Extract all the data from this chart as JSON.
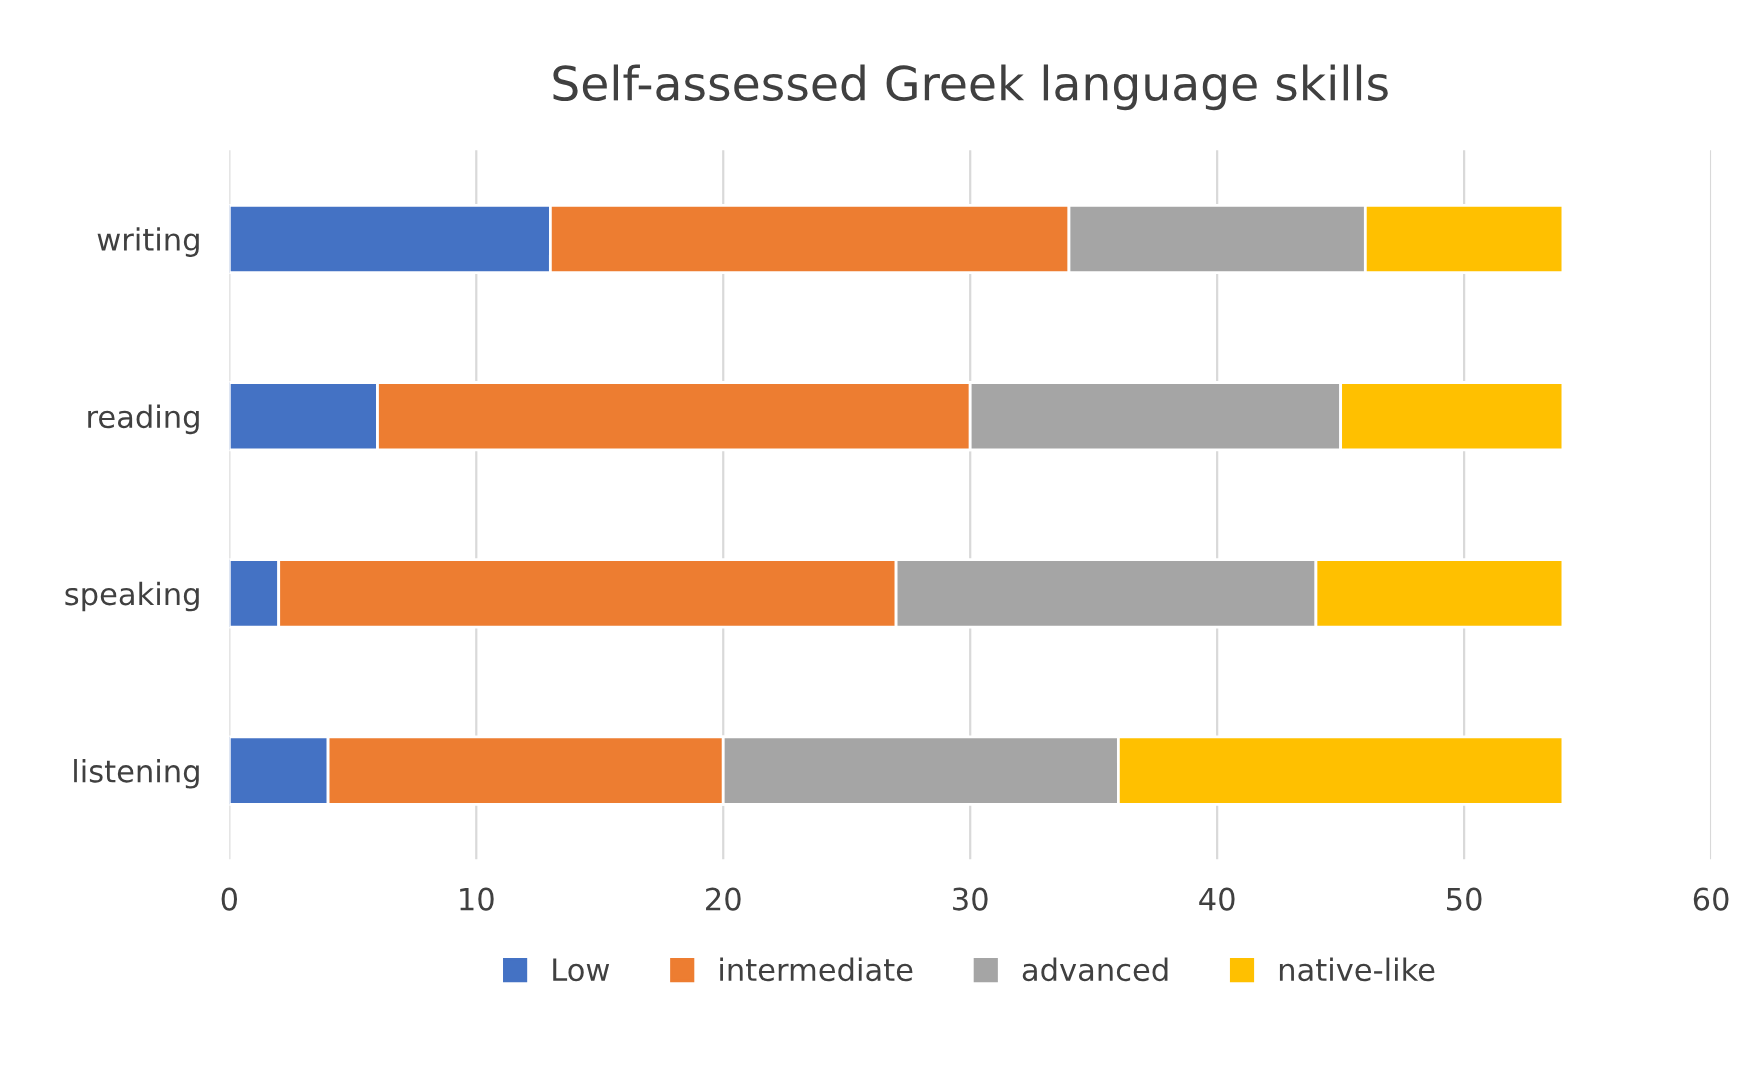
{
  "chart_data": {
    "type": "bar",
    "title": "Self-assessed Greek language skills",
    "orientation": "horizontal",
    "stacked": true,
    "categories": [
      "writing",
      "reading",
      "speaking",
      "listening"
    ],
    "series": [
      {
        "name": "Low",
        "color": "#4472c4",
        "values": [
          13,
          6,
          2,
          4
        ]
      },
      {
        "name": "intermediate",
        "color": "#ed7d31",
        "values": [
          21,
          24,
          25,
          16
        ]
      },
      {
        "name": "advanced",
        "color": "#a5a5a5",
        "values": [
          12,
          15,
          17,
          16
        ]
      },
      {
        "name": "native-like",
        "color": "#ffc000",
        "values": [
          8,
          9,
          10,
          18
        ]
      }
    ],
    "xlim": [
      0,
      60
    ],
    "xticks": [
      0,
      10,
      20,
      30,
      40,
      50,
      60
    ],
    "grid": "x",
    "legend": "bottom"
  }
}
